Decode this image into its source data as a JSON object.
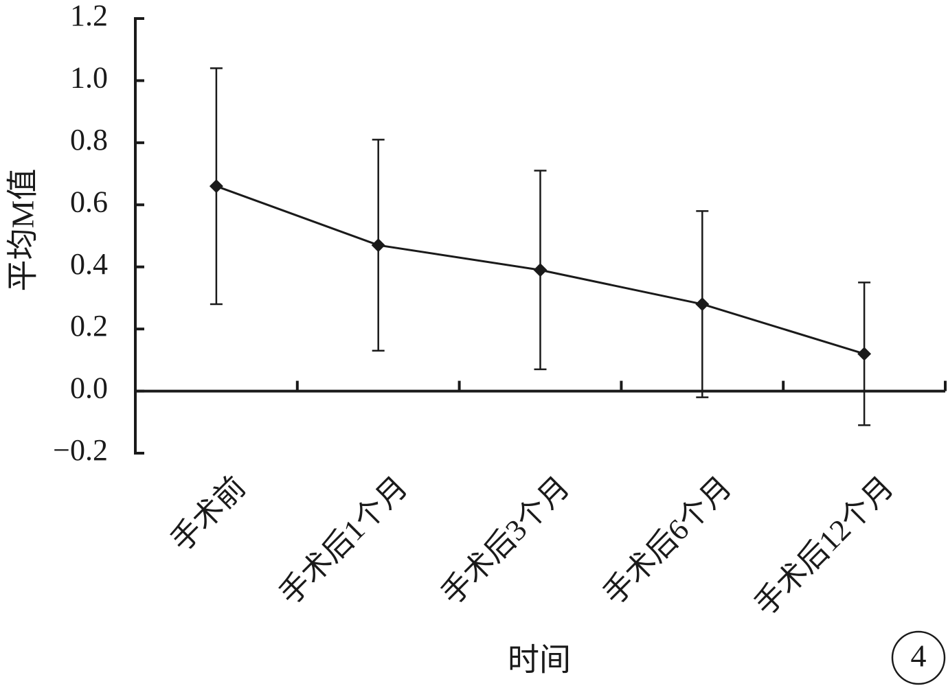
{
  "chart_data": {
    "type": "line",
    "y_label": "平均M值",
    "x_label": "时间",
    "annotation": "4",
    "categories": [
      "手术前",
      "手术后1个月",
      "手术后3个月",
      "手术后6个月",
      "手术后12个月"
    ],
    "series": [
      {
        "color": "#1a1a1a",
        "values": [
          0.66,
          0.47,
          0.39,
          0.28,
          0.12
        ],
        "errors": [
          0.38,
          0.34,
          0.32,
          0.3,
          0.23
        ]
      }
    ],
    "ylim": [
      -0.2,
      1.2
    ],
    "yticks": [
      {
        "value": -0.2,
        "label": "−0.2"
      },
      {
        "value": 0,
        "label": "0.0"
      },
      0.2,
      0.4,
      0.6,
      0.8,
      {
        "value": 1,
        "label": "1.0"
      },
      1.2
    ],
    "grid": false
  }
}
